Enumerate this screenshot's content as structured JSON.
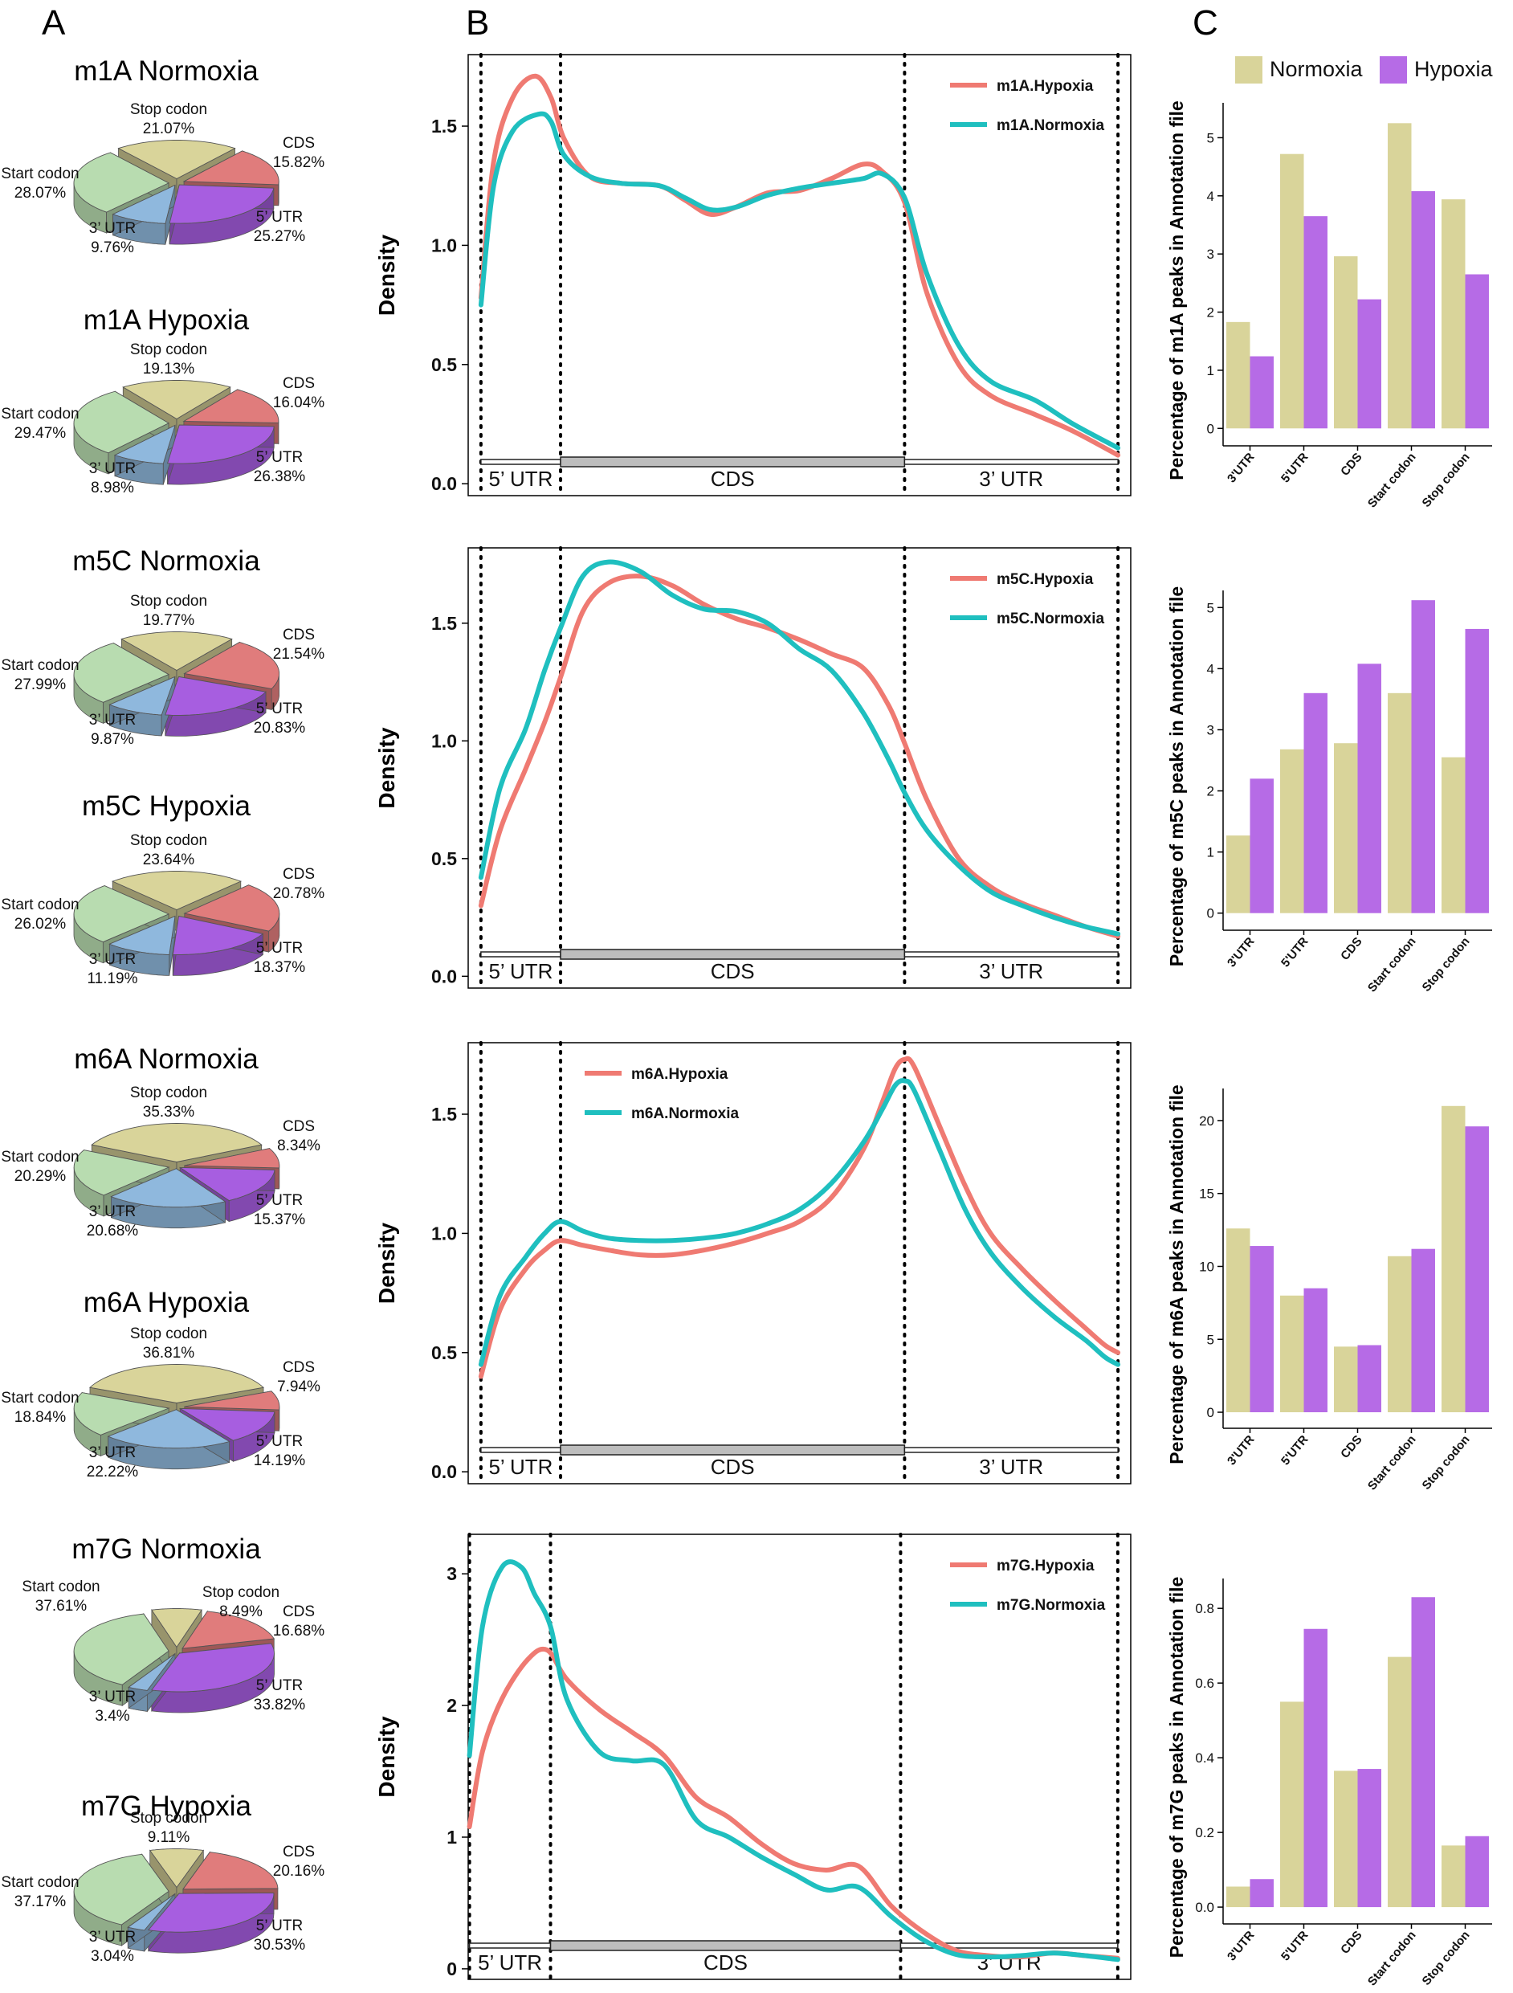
{
  "panel_labels": [
    "A",
    "B",
    "C"
  ],
  "colors": {
    "hypoxia_line": "#ef7a72",
    "normoxia_line": "#1fbfbf",
    "normoxia_bar": "#d9d49a",
    "hypoxia_bar": "#b66be6",
    "stop_codon": "#d9d49a",
    "cds": "#e07c7c",
    "utr5": "#a75ee0",
    "utr3": "#8fb8dd",
    "start_codon": "#b8dcb0"
  },
  "chart_data": [
    {
      "type": "pie",
      "title": "m1A Normoxia",
      "slices": [
        {
          "name": "Stop codon",
          "value": 21.07,
          "label": "21.07%"
        },
        {
          "name": "CDS",
          "value": 15.82,
          "label": "15.82%"
        },
        {
          "name": "5’ UTR",
          "value": 25.27,
          "label": "25.27%"
        },
        {
          "name": "3’ UTR",
          "value": 9.76,
          "label": "9.76%"
        },
        {
          "name": "Start codon",
          "value": 28.07,
          "label": "28.07%"
        }
      ]
    },
    {
      "type": "pie",
      "title": "m1A Hypoxia",
      "slices": [
        {
          "name": "Stop codon",
          "value": 19.13,
          "label": "19.13%"
        },
        {
          "name": "CDS",
          "value": 16.04,
          "label": "16.04%"
        },
        {
          "name": "5’ UTR",
          "value": 26.38,
          "label": "26.38%"
        },
        {
          "name": "3’ UTR",
          "value": 8.98,
          "label": "8.98%"
        },
        {
          "name": "Start codon",
          "value": 29.47,
          "label": "29.47%"
        }
      ]
    },
    {
      "type": "pie",
      "title": "m5C Normoxia",
      "slices": [
        {
          "name": "Stop codon",
          "value": 19.77,
          "label": "19.77%"
        },
        {
          "name": "CDS",
          "value": 21.54,
          "label": "21.54%"
        },
        {
          "name": "5’ UTR",
          "value": 20.83,
          "label": "20.83%"
        },
        {
          "name": "3’ UTR",
          "value": 9.87,
          "label": "9.87%"
        },
        {
          "name": "Start codon",
          "value": 27.99,
          "label": "27.99%"
        }
      ]
    },
    {
      "type": "pie",
      "title": "m5C Hypoxia",
      "slices": [
        {
          "name": "Stop codon",
          "value": 23.64,
          "label": "23.64%"
        },
        {
          "name": "CDS",
          "value": 20.78,
          "label": "20.78%"
        },
        {
          "name": "5’ UTR",
          "value": 18.37,
          "label": "18.37%"
        },
        {
          "name": "3’ UTR",
          "value": 11.19,
          "label": "11.19%"
        },
        {
          "name": "Start codon",
          "value": 26.02,
          "label": "26.02%"
        }
      ]
    },
    {
      "type": "pie",
      "title": "m6A Normoxia",
      "slices": [
        {
          "name": "Stop codon",
          "value": 35.33,
          "label": "35.33%"
        },
        {
          "name": "CDS",
          "value": 8.34,
          "label": "8.34%"
        },
        {
          "name": "5’ UTR",
          "value": 15.37,
          "label": "15.37%"
        },
        {
          "name": "3’ UTR",
          "value": 20.68,
          "label": "20.68%"
        },
        {
          "name": "Start codon",
          "value": 20.29,
          "label": "20.29%"
        }
      ]
    },
    {
      "type": "pie",
      "title": "m6A Hypoxia",
      "slices": [
        {
          "name": "Stop codon",
          "value": 36.81,
          "label": "36.81%"
        },
        {
          "name": "CDS",
          "value": 7.94,
          "label": "7.94%"
        },
        {
          "name": "5’ UTR",
          "value": 14.19,
          "label": "14.19%"
        },
        {
          "name": "3’ UTR",
          "value": 22.22,
          "label": "22.22%"
        },
        {
          "name": "Start codon",
          "value": 18.84,
          "label": "18.84%"
        }
      ]
    },
    {
      "type": "pie",
      "title": "m7G Normoxia",
      "slices": [
        {
          "name": "Stop codon",
          "value": 8.49,
          "label": "8.49%"
        },
        {
          "name": "CDS",
          "value": 16.68,
          "label": "16.68%"
        },
        {
          "name": "5’ UTR",
          "value": 33.82,
          "label": "33.82%"
        },
        {
          "name": "3’ UTR",
          "value": 3.4,
          "label": "3.4%"
        },
        {
          "name": "Start codon",
          "value": 37.61,
          "label": "37.61%"
        }
      ]
    },
    {
      "type": "pie",
      "title": "m7G Hypoxia",
      "slices": [
        {
          "name": "Stop codon",
          "value": 9.11,
          "label": "9.11%"
        },
        {
          "name": "CDS",
          "value": 20.16,
          "label": "20.16%"
        },
        {
          "name": "5’ UTR",
          "value": 30.53,
          "label": "30.53%"
        },
        {
          "name": "3’ UTR",
          "value": 3.04,
          "label": "3.04%"
        },
        {
          "name": "Start codon",
          "value": 37.17,
          "label": "37.17%"
        }
      ]
    },
    {
      "type": "line",
      "ylabel": "Density",
      "ylim": [
        -0.05,
        1.8
      ],
      "yticks": [
        0.0,
        0.5,
        1.0,
        1.5
      ],
      "ytick_labels": [
        "0.0",
        "0.5",
        "1.0",
        "1.5"
      ],
      "xlim": [
        -0.02,
        1.02
      ],
      "boundaries": [
        0,
        0.125,
        0.665,
        1
      ],
      "regions": [
        "5’ UTR",
        "CDS",
        "3’ UTR"
      ],
      "legend_position": "top-right",
      "series": [
        {
          "name": "m1A.Hypoxia",
          "color": "#ef7a72",
          "x": [
            0,
            0.02,
            0.05,
            0.085,
            0.11,
            0.13,
            0.17,
            0.22,
            0.28,
            0.32,
            0.36,
            0.4,
            0.45,
            0.5,
            0.55,
            0.6,
            0.63,
            0.665,
            0.7,
            0.75,
            0.8,
            0.87,
            0.93,
            1.0
          ],
          "y": [
            0.78,
            1.35,
            1.62,
            1.71,
            1.62,
            1.45,
            1.29,
            1.26,
            1.25,
            1.19,
            1.13,
            1.16,
            1.22,
            1.23,
            1.28,
            1.34,
            1.31,
            1.18,
            0.8,
            0.5,
            0.37,
            0.29,
            0.22,
            0.12
          ]
        },
        {
          "name": "m1A.Normoxia",
          "color": "#1fbfbf",
          "x": [
            0,
            0.02,
            0.05,
            0.09,
            0.11,
            0.13,
            0.17,
            0.22,
            0.28,
            0.32,
            0.36,
            0.4,
            0.45,
            0.5,
            0.55,
            0.6,
            0.63,
            0.665,
            0.7,
            0.75,
            0.8,
            0.87,
            0.93,
            1.0
          ],
          "y": [
            0.75,
            1.25,
            1.48,
            1.55,
            1.52,
            1.38,
            1.29,
            1.26,
            1.25,
            1.2,
            1.15,
            1.16,
            1.21,
            1.24,
            1.26,
            1.28,
            1.3,
            1.2,
            0.88,
            0.58,
            0.43,
            0.35,
            0.25,
            0.15
          ]
        }
      ]
    },
    {
      "type": "line",
      "ylabel": "Density",
      "ylim": [
        -0.05,
        1.82
      ],
      "yticks": [
        0.0,
        0.5,
        1.0,
        1.5
      ],
      "ytick_labels": [
        "0.0",
        "0.5",
        "1.0",
        "1.5"
      ],
      "xlim": [
        -0.02,
        1.02
      ],
      "boundaries": [
        0,
        0.125,
        0.665,
        1
      ],
      "regions": [
        "5’ UTR",
        "CDS",
        "3’ UTR"
      ],
      "legend_position": "top-right",
      "series": [
        {
          "name": "m5C.Hypoxia",
          "color": "#ef7a72",
          "x": [
            0,
            0.03,
            0.07,
            0.1,
            0.125,
            0.16,
            0.2,
            0.25,
            0.3,
            0.35,
            0.4,
            0.45,
            0.5,
            0.55,
            0.6,
            0.64,
            0.665,
            0.7,
            0.75,
            0.8,
            0.85,
            0.9,
            0.95,
            1.0
          ],
          "y": [
            0.3,
            0.62,
            0.88,
            1.08,
            1.27,
            1.55,
            1.67,
            1.7,
            1.66,
            1.58,
            1.52,
            1.48,
            1.43,
            1.37,
            1.31,
            1.15,
            0.99,
            0.75,
            0.5,
            0.38,
            0.31,
            0.26,
            0.21,
            0.17
          ]
        },
        {
          "name": "m5C.Normoxia",
          "color": "#1fbfbf",
          "x": [
            0,
            0.03,
            0.07,
            0.1,
            0.125,
            0.16,
            0.2,
            0.25,
            0.3,
            0.35,
            0.4,
            0.45,
            0.5,
            0.55,
            0.6,
            0.64,
            0.665,
            0.7,
            0.75,
            0.8,
            0.85,
            0.9,
            0.95,
            1.0
          ],
          "y": [
            0.42,
            0.8,
            1.05,
            1.3,
            1.48,
            1.7,
            1.76,
            1.72,
            1.62,
            1.56,
            1.55,
            1.5,
            1.39,
            1.3,
            1.12,
            0.92,
            0.78,
            0.62,
            0.47,
            0.36,
            0.3,
            0.25,
            0.21,
            0.18
          ]
        }
      ]
    },
    {
      "type": "line",
      "ylabel": "Density",
      "ylim": [
        -0.05,
        1.8
      ],
      "yticks": [
        0.0,
        0.5,
        1.0,
        1.5
      ],
      "ytick_labels": [
        "0.0",
        "0.5",
        "1.0",
        "1.5"
      ],
      "xlim": [
        -0.02,
        1.02
      ],
      "boundaries": [
        0,
        0.125,
        0.665,
        1
      ],
      "regions": [
        "5’ UTR",
        "CDS",
        "3’ UTR"
      ],
      "legend_position": "top-left",
      "series": [
        {
          "name": "m6A.Hypoxia",
          "color": "#ef7a72",
          "x": [
            0,
            0.03,
            0.07,
            0.1,
            0.125,
            0.16,
            0.2,
            0.25,
            0.3,
            0.35,
            0.4,
            0.45,
            0.5,
            0.55,
            0.6,
            0.63,
            0.65,
            0.665,
            0.68,
            0.72,
            0.76,
            0.8,
            0.85,
            0.9,
            0.95,
            0.98,
            1.0
          ],
          "y": [
            0.4,
            0.68,
            0.85,
            0.93,
            0.97,
            0.95,
            0.93,
            0.91,
            0.91,
            0.93,
            0.96,
            1.0,
            1.05,
            1.15,
            1.35,
            1.55,
            1.69,
            1.73,
            1.7,
            1.45,
            1.2,
            1.0,
            0.85,
            0.72,
            0.6,
            0.53,
            0.5
          ]
        },
        {
          "name": "m6A.Normoxia",
          "color": "#1fbfbf",
          "x": [
            0,
            0.03,
            0.07,
            0.1,
            0.125,
            0.16,
            0.2,
            0.25,
            0.3,
            0.35,
            0.4,
            0.45,
            0.5,
            0.55,
            0.6,
            0.63,
            0.65,
            0.665,
            0.68,
            0.72,
            0.76,
            0.8,
            0.85,
            0.9,
            0.95,
            0.98,
            1.0
          ],
          "y": [
            0.45,
            0.74,
            0.9,
            1.0,
            1.05,
            1.01,
            0.98,
            0.97,
            0.97,
            0.98,
            1.0,
            1.04,
            1.1,
            1.21,
            1.38,
            1.52,
            1.62,
            1.64,
            1.6,
            1.35,
            1.1,
            0.92,
            0.77,
            0.65,
            0.55,
            0.48,
            0.45
          ]
        }
      ]
    },
    {
      "type": "line",
      "ylabel": "Density",
      "ylim": [
        -0.08,
        3.3
      ],
      "yticks": [
        0,
        1,
        2,
        3
      ],
      "ytick_labels": [
        "0",
        "1",
        "2",
        "3"
      ],
      "xlim": [
        -0.002,
        1.02
      ],
      "boundaries": [
        0,
        0.125,
        0.665,
        1
      ],
      "regions": [
        "5’ UTR",
        "CDS",
        "3’ UTR"
      ],
      "legend_position": "top-right",
      "series": [
        {
          "name": "m7G.Hypoxia",
          "color": "#ef7a72",
          "x": [
            0,
            0.02,
            0.05,
            0.09,
            0.12,
            0.15,
            0.2,
            0.25,
            0.3,
            0.35,
            0.4,
            0.45,
            0.5,
            0.55,
            0.6,
            0.65,
            0.7,
            0.75,
            0.8,
            0.85,
            0.9,
            0.95,
            1.0
          ],
          "y": [
            1.08,
            1.65,
            2.05,
            2.35,
            2.42,
            2.2,
            1.97,
            1.8,
            1.62,
            1.3,
            1.15,
            0.95,
            0.8,
            0.75,
            0.78,
            0.48,
            0.28,
            0.14,
            0.1,
            0.09,
            0.12,
            0.1,
            0.08
          ]
        },
        {
          "name": "m7G.Normoxia",
          "color": "#1fbfbf",
          "x": [
            0,
            0.02,
            0.05,
            0.08,
            0.1,
            0.125,
            0.15,
            0.2,
            0.25,
            0.3,
            0.35,
            0.4,
            0.45,
            0.5,
            0.55,
            0.6,
            0.65,
            0.7,
            0.75,
            0.8,
            0.85,
            0.9,
            0.95,
            1.0
          ],
          "y": [
            1.62,
            2.6,
            3.05,
            3.05,
            2.85,
            2.6,
            2.05,
            1.65,
            1.58,
            1.55,
            1.13,
            1.0,
            0.85,
            0.72,
            0.6,
            0.62,
            0.4,
            0.22,
            0.11,
            0.09,
            0.1,
            0.12,
            0.1,
            0.07
          ]
        }
      ]
    },
    {
      "type": "bar",
      "categories": [
        "3'UTR",
        "5'UTR",
        "CDS",
        "Start codon",
        "Stop codon"
      ],
      "ylabel": "Percentage of m1A peaks in Annotation file",
      "ylim": [
        -0.3,
        5.6
      ],
      "yticks": [
        0,
        1,
        2,
        3,
        4,
        5
      ],
      "ytick_labels": [
        "0",
        "1",
        "2",
        "3",
        "4",
        "5"
      ],
      "legend_position": "top",
      "series": [
        {
          "name": "Normoxia",
          "color": "#d9d49a",
          "values": [
            1.83,
            4.72,
            2.96,
            5.25,
            3.94
          ]
        },
        {
          "name": "Hypoxia",
          "color": "#b66be6",
          "values": [
            1.24,
            3.65,
            2.22,
            4.08,
            2.65
          ]
        }
      ]
    },
    {
      "type": "bar",
      "categories": [
        "3'UTR",
        "5'UTR",
        "CDS",
        "Start codon",
        "Stop codon"
      ],
      "ylabel": "Percentage of m5C peaks in Annotation file",
      "ylim": [
        -0.28,
        5.28
      ],
      "yticks": [
        0,
        1,
        2,
        3,
        4,
        5
      ],
      "ytick_labels": [
        "0",
        "1",
        "2",
        "3",
        "4",
        "5"
      ],
      "series": [
        {
          "name": "Normoxia",
          "color": "#d9d49a",
          "values": [
            1.27,
            2.68,
            2.78,
            3.6,
            2.55
          ]
        },
        {
          "name": "Hypoxia",
          "color": "#b66be6",
          "values": [
            2.2,
            3.6,
            4.08,
            5.12,
            4.65
          ]
        }
      ]
    },
    {
      "type": "bar",
      "categories": [
        "3'UTR",
        "5'UTR",
        "CDS",
        "Start codon",
        "Stop codon"
      ],
      "ylabel": "Percentage of m6A peaks in Annotation file",
      "ylim": [
        -1.1,
        22.2
      ],
      "yticks": [
        0,
        5,
        10,
        15,
        20
      ],
      "ytick_labels": [
        "0",
        "5",
        "10",
        "15",
        "20"
      ],
      "series": [
        {
          "name": "Normoxia",
          "color": "#d9d49a",
          "values": [
            12.6,
            8.0,
            4.5,
            10.7,
            21.0
          ]
        },
        {
          "name": "Hypoxia",
          "color": "#b66be6",
          "values": [
            11.4,
            8.5,
            4.6,
            11.2,
            19.6
          ]
        }
      ]
    },
    {
      "type": "bar",
      "categories": [
        "3'UTR",
        "5'UTR",
        "CDS",
        "Start codon",
        "Stop codon"
      ],
      "ylabel": "Percentage of m7G peaks in Annotation file",
      "ylim": [
        -0.045,
        0.88
      ],
      "yticks": [
        0.0,
        0.2,
        0.4,
        0.6,
        0.8
      ],
      "ytick_labels": [
        "0.0",
        "0.2",
        "0.4",
        "0.6",
        "0.8"
      ],
      "series": [
        {
          "name": "Normoxia",
          "color": "#d9d49a",
          "values": [
            0.055,
            0.55,
            0.365,
            0.67,
            0.165
          ]
        },
        {
          "name": "Hypoxia",
          "color": "#b66be6",
          "values": [
            0.075,
            0.745,
            0.37,
            0.83,
            0.19
          ]
        }
      ]
    }
  ]
}
